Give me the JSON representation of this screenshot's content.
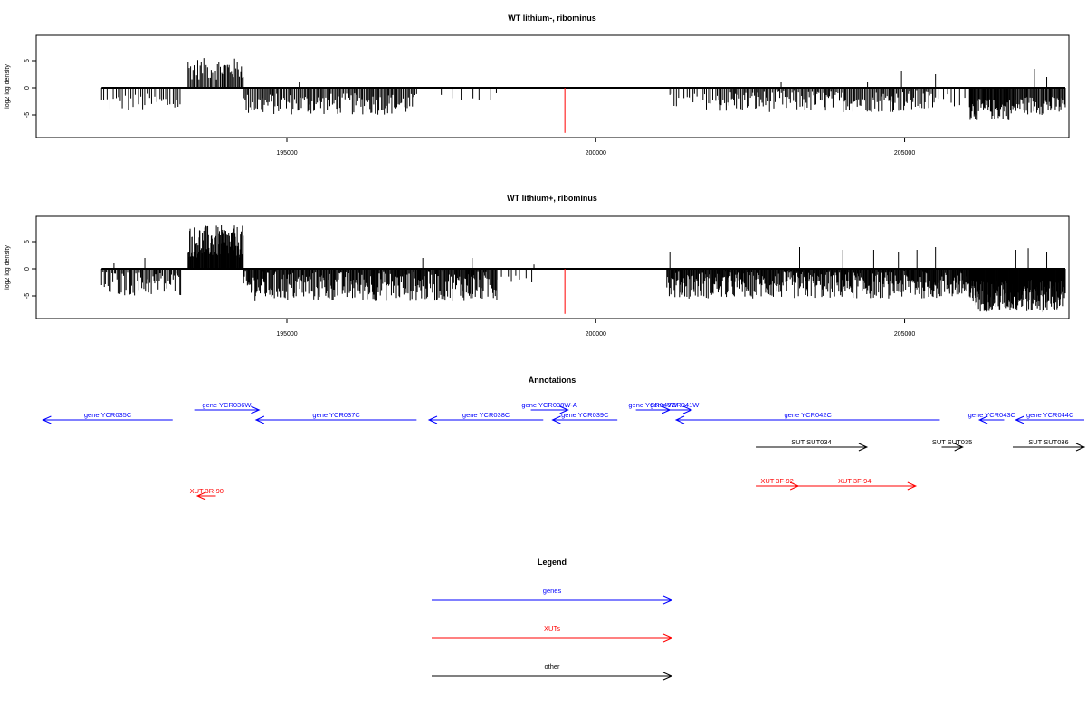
{
  "chart_data": [
    {
      "type": "bar",
      "title": "WT lithium-, ribominus",
      "ylabel": "log2 log density",
      "xlim": [
        191000,
        207600
      ],
      "ylim": [
        -8.5,
        9
      ],
      "xticks": [
        195000,
        200000,
        205000
      ],
      "yticks": [
        -5,
        0,
        5
      ],
      "bar_color": "#000000",
      "marker_color": "#ff0000",
      "marker_positions": [
        199500,
        200150
      ],
      "marker_depth": -8.3,
      "segments": [
        {
          "start": 192000,
          "end": 193300,
          "min": -4.5,
          "max": -1.0,
          "step": 40
        },
        {
          "start": 193400,
          "end": 194300,
          "min": 1.5,
          "max": 5.5,
          "step": 18
        },
        {
          "start": 194300,
          "end": 197100,
          "min": -5.0,
          "max": -1.0,
          "step": 20
        },
        {
          "start": 197500,
          "end": 198400,
          "min": -2.5,
          "max": -0.5,
          "step": 150
        },
        {
          "start": 201200,
          "end": 202000,
          "min": -4.0,
          "max": -1.0,
          "step": 40
        },
        {
          "start": 202000,
          "end": 205500,
          "min": -4.5,
          "max": -0.5,
          "step": 20
        },
        {
          "start": 205500,
          "end": 206050,
          "min": -3.5,
          "max": -1.0,
          "step": 70
        },
        {
          "start": 206050,
          "end": 206800,
          "min": -6.0,
          "max": -2.0,
          "step": 12
        },
        {
          "start": 206800,
          "end": 207600,
          "min": -5.0,
          "max": -1.5,
          "step": 15
        }
      ],
      "spikes": [
        [
          203000,
          1.0
        ],
        [
          204400,
          1.0
        ],
        [
          204950,
          3.0
        ],
        [
          205500,
          2.5
        ],
        [
          207100,
          3.5
        ],
        [
          207300,
          2.0
        ],
        [
          195200,
          1.0
        ]
      ]
    },
    {
      "type": "bar",
      "title": "WT lithium+, ribominus",
      "ylabel": "log2 log density",
      "xlim": [
        191000,
        207600
      ],
      "ylim": [
        -8.5,
        9
      ],
      "xticks": [
        195000,
        200000,
        205000
      ],
      "yticks": [
        -5,
        0,
        5
      ],
      "bar_color": "#000000",
      "marker_color": "#ff0000",
      "marker_positions": [
        199500,
        200150
      ],
      "marker_depth": -8.3,
      "segments": [
        {
          "start": 192000,
          "end": 193300,
          "min": -5.0,
          "max": -0.5,
          "step": 20
        },
        {
          "start": 193400,
          "end": 194300,
          "min": 2.0,
          "max": 8.0,
          "step": 9
        },
        {
          "start": 194300,
          "end": 198400,
          "min": -6.0,
          "max": -0.5,
          "step": 13
        },
        {
          "start": 198400,
          "end": 199000,
          "min": -2.5,
          "max": -0.5,
          "step": 80
        },
        {
          "start": 201150,
          "end": 206050,
          "min": -5.5,
          "max": -0.5,
          "step": 11
        },
        {
          "start": 206050,
          "end": 207600,
          "min": -8.0,
          "max": -2.0,
          "step": 7
        }
      ],
      "spikes": [
        [
          192200,
          1.0
        ],
        [
          192700,
          2.0
        ],
        [
          197200,
          2.0
        ],
        [
          198000,
          2.0
        ],
        [
          199000,
          0.8
        ],
        [
          201200,
          3.0
        ],
        [
          203300,
          4.0
        ],
        [
          204000,
          3.5
        ],
        [
          204500,
          3.5
        ],
        [
          204900,
          3.0
        ],
        [
          205200,
          3.5
        ],
        [
          205500,
          4.0
        ],
        [
          206800,
          3.5
        ],
        [
          207000,
          3.8
        ],
        [
          207300,
          3.0
        ]
      ]
    }
  ],
  "annotations": {
    "title": "Annotations",
    "items": [
      {
        "label": "gene YCR035C",
        "category": "gene",
        "start": 191050,
        "end": 193150,
        "dir": "left",
        "row": 1
      },
      {
        "label": "gene YCR036W",
        "category": "gene",
        "start": 193500,
        "end": 194550,
        "dir": "right",
        "row": 0
      },
      {
        "label": "gene YCR037C",
        "category": "gene",
        "start": 194500,
        "end": 197100,
        "dir": "left",
        "row": 1
      },
      {
        "label": "gene YCR038C",
        "category": "gene",
        "start": 197300,
        "end": 199150,
        "dir": "left",
        "row": 1
      },
      {
        "label": "gene YCR038W-A",
        "category": "gene",
        "start": 198950,
        "end": 199550,
        "dir": "right",
        "row": 0
      },
      {
        "label": "gene YCR039C",
        "category": "gene",
        "start": 199300,
        "end": 200350,
        "dir": "left",
        "row": 1
      },
      {
        "label": "gene YCR040W",
        "category": "gene",
        "start": 200650,
        "end": 201200,
        "dir": "right",
        "row": 0
      },
      {
        "label": "gene YCR041W",
        "category": "gene",
        "start": 201000,
        "end": 201550,
        "dir": "right",
        "row": 0
      },
      {
        "label": "gene YCR042C",
        "category": "gene",
        "start": 201300,
        "end": 205570,
        "dir": "left",
        "row": 1
      },
      {
        "label": "gene YCR043C",
        "category": "gene",
        "start": 206210,
        "end": 206610,
        "dir": "left",
        "row": 1
      },
      {
        "label": "gene YCR044C",
        "category": "gene",
        "start": 206800,
        "end": 208250,
        "dir": "left",
        "row": 1
      },
      {
        "label": "SUT SUT034",
        "category": "other",
        "start": 202590,
        "end": 204390,
        "dir": "right",
        "row": 2
      },
      {
        "label": "SUT SUT035",
        "category": "other",
        "start": 205600,
        "end": 205940,
        "dir": "right",
        "row": 2
      },
      {
        "label": "SUT SUT036",
        "category": "other",
        "start": 206750,
        "end": 208200,
        "dir": "right",
        "row": 2
      },
      {
        "label": "XUT 3R-90",
        "category": "xut",
        "start": 193550,
        "end": 193850,
        "dir": "left",
        "row": 4
      },
      {
        "label": "XUT 3F-92",
        "category": "xut",
        "start": 202590,
        "end": 203280,
        "dir": "right",
        "row": 3
      },
      {
        "label": "XUT 3F-94",
        "category": "xut",
        "start": 203200,
        "end": 205180,
        "dir": "right",
        "row": 3
      }
    ]
  },
  "legend": {
    "title": "Legend",
    "items": [
      {
        "label": "genes",
        "category": "gene"
      },
      {
        "label": "XUTs",
        "category": "xut"
      },
      {
        "label": "other",
        "category": "other"
      }
    ]
  },
  "colors": {
    "gene": "#0000ff",
    "xut": "#ff0000",
    "other": "#000000"
  }
}
